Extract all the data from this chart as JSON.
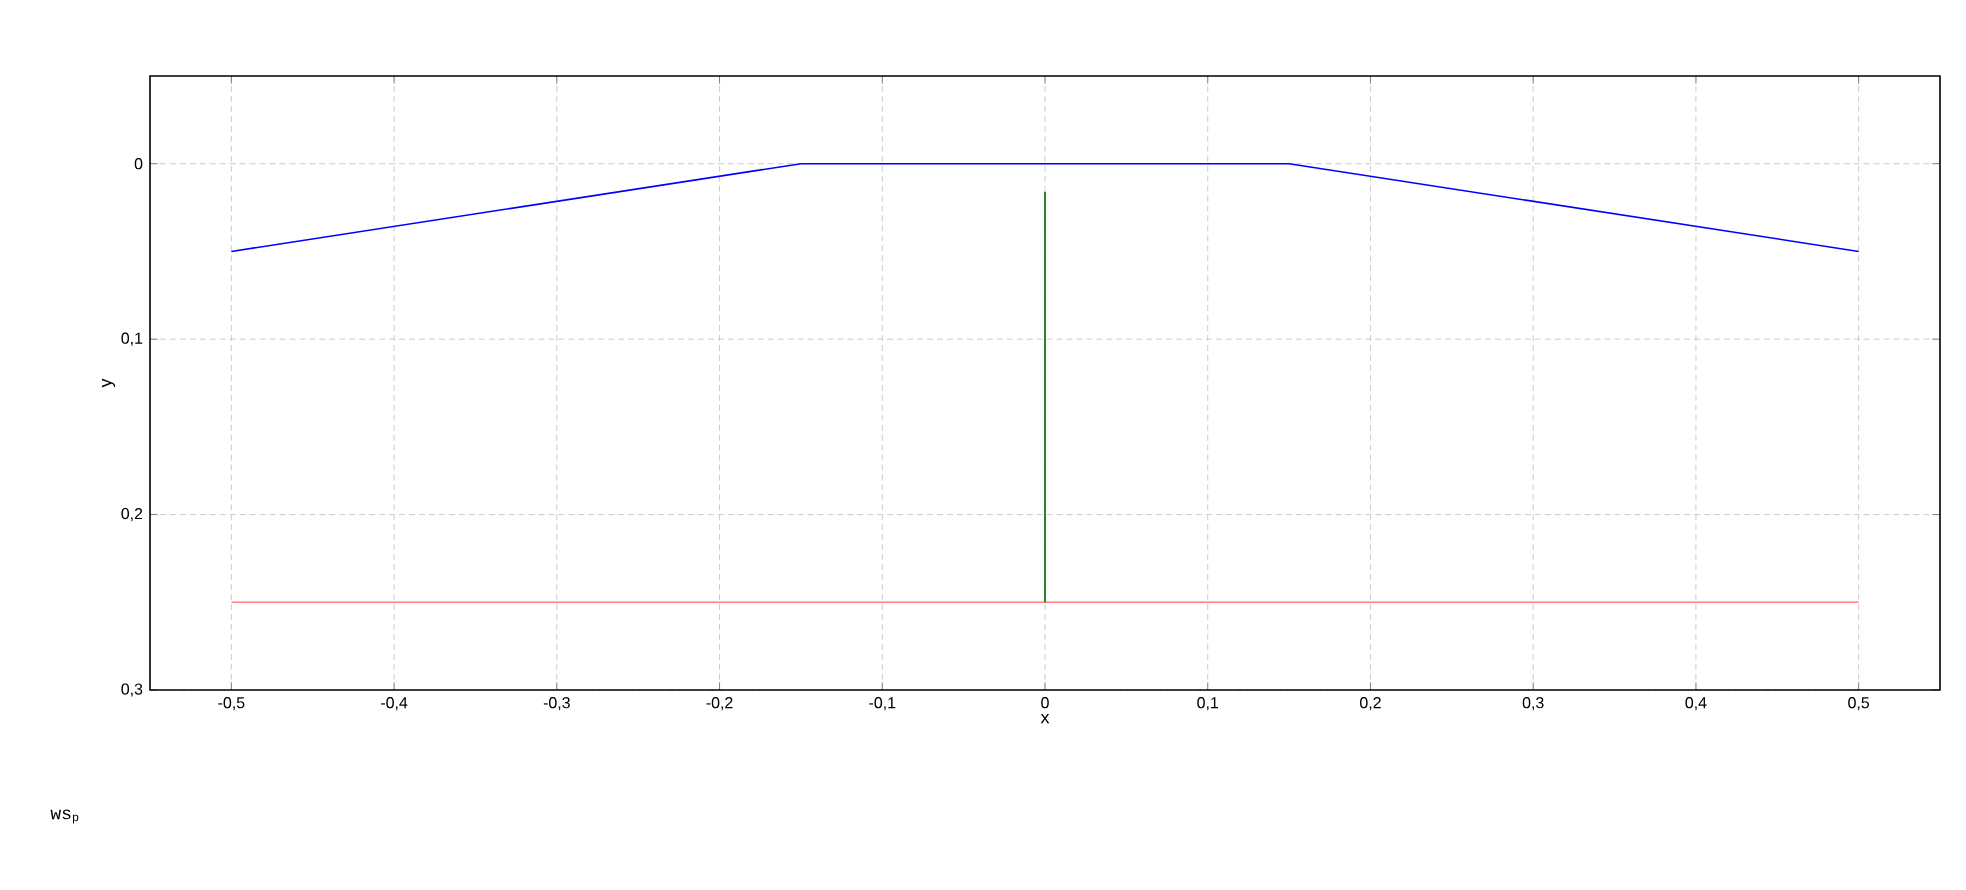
{
  "chart_data": {
    "type": "line",
    "xlabel": "x",
    "ylabel": "y",
    "xlim": [
      -0.55,
      0.55
    ],
    "ylim": [
      0.3,
      -0.05
    ],
    "xticks": [
      {
        "value": -0.5,
        "label": "-0,5"
      },
      {
        "value": -0.4,
        "label": "-0,4"
      },
      {
        "value": -0.3,
        "label": "-0,3"
      },
      {
        "value": -0.2,
        "label": "-0,2"
      },
      {
        "value": -0.1,
        "label": "-0,1"
      },
      0,
      {
        "value": 0.1,
        "label": "0,1"
      },
      {
        "value": 0.2,
        "label": "0,2"
      },
      {
        "value": 0.3,
        "label": "0,3"
      },
      {
        "value": 0.4,
        "label": "0,4"
      },
      {
        "value": 0.5,
        "label": "0,5"
      }
    ],
    "yticks": [
      0,
      {
        "value": 0.1,
        "label": "0,1"
      },
      {
        "value": 0.2,
        "label": "0,2"
      },
      {
        "value": 0.3,
        "label": "0,3"
      }
    ],
    "grid": true,
    "marker": "none",
    "line_style": "solid",
    "series": [
      {
        "color": "#0000ff",
        "x": [
          -0.5,
          -0.15,
          0.15,
          0.5
        ],
        "values": [
          0.05,
          0,
          0,
          0.05
        ]
      },
      {
        "color": "#ff8080",
        "x": [
          -0.5,
          0.5
        ],
        "values": [
          0.25,
          0.25
        ]
      },
      {
        "color": "#006400",
        "x": [
          0,
          0
        ],
        "values": [
          0.016,
          0.25
        ]
      }
    ],
    "annotations": [
      "ws$_{p}$"
    ]
  }
}
